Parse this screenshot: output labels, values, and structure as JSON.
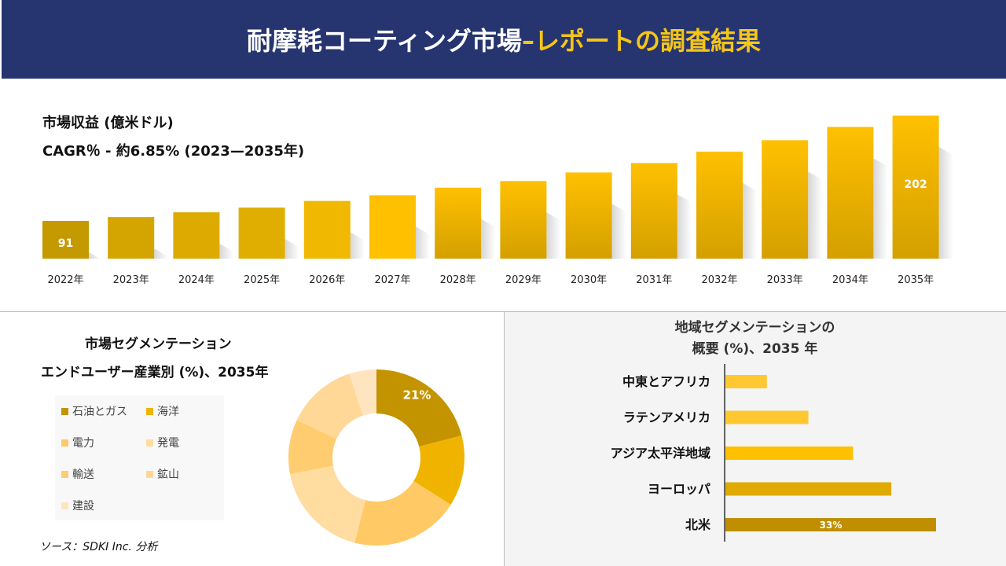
{
  "header": {
    "title_main": "耐摩耗コーティング市場 ",
    "title_accent": "–レポートの調査結果"
  },
  "revenue": {
    "title": "市場収益 (億米ドル)",
    "cagr": "CAGR％ - 約6.85% (2023—2035年)"
  },
  "chart_data": [
    {
      "type": "bar",
      "title": "市場収益 (億米ドル)",
      "categories": [
        "2022年",
        "2023年",
        "2024年",
        "2025年",
        "2026年",
        "2027年",
        "2028年",
        "2029年",
        "2030年",
        "2031年",
        "2032年",
        "2033年",
        "2034年",
        "2035年"
      ],
      "values": [
        91,
        95,
        100,
        105,
        112,
        118,
        126,
        133,
        142,
        152,
        164,
        176,
        190,
        202
      ],
      "data_labels": {
        "0": "91",
        "13": "202"
      },
      "colors": [
        "#c49a00",
        "#d4a500",
        "#dcaa00",
        "#e0ae00",
        "#f0b800",
        "#ffc000",
        "#ffc000",
        "#ffc000",
        "#ffc000",
        "#ffc000",
        "#ffc000",
        "#ffc000",
        "#ffc000",
        "#ffc000"
      ]
    },
    {
      "type": "pie",
      "title": "市場セグメンテーション エンドユーザー産業別 (%)、2035年",
      "labels": [
        "石油とガス",
        "海洋",
        "電力",
        "発電",
        "輸送",
        "鉱山",
        "建設"
      ],
      "values": [
        21,
        13,
        20,
        18,
        10,
        13,
        5
      ],
      "data_labels": {
        "0": "21%"
      },
      "colors": [
        "#c49400",
        "#f0b400",
        "#ffc966",
        "#ffdca0",
        "#ffcd70",
        "#ffd898",
        "#ffe4c0"
      ]
    },
    {
      "type": "bar",
      "orientation": "horizontal",
      "title": "地域セグメンテーションの 概要 (%)、2035 年",
      "categories": [
        "中東とアフリカ",
        "ラテンアメリカ",
        "アジア太平洋地域",
        "ヨーロッパ",
        "北米"
      ],
      "values": [
        6.5,
        13,
        20,
        26,
        33
      ],
      "data_labels": {
        "4": "33%"
      },
      "colors": [
        "#ffc830",
        "#ffc830",
        "#ffc000",
        "#e0aa00",
        "#bf8f00"
      ]
    }
  ],
  "segment": {
    "title1": "市場セグメンテーション",
    "title2": "エンドユーザー産業別 (%)、2035年"
  },
  "region": {
    "title1": "地域セグメンテーションの",
    "title2": "概要 (%)、2035 年"
  },
  "source": "ソース：SDKI Inc. 分析"
}
